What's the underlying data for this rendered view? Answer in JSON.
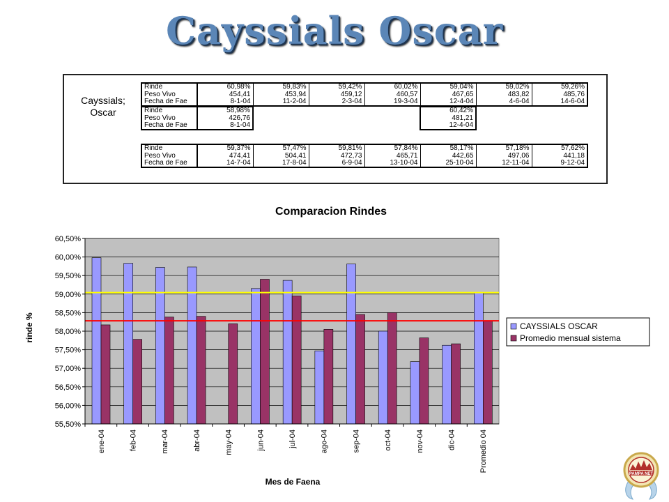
{
  "title": "Cayssials Oscar",
  "table": {
    "grower_label_line1": "Cayssials;",
    "grower_label_line2": "Oscar",
    "block1": {
      "labels": [
        "Rinde",
        "Peso Vivo",
        "Fecha de Fae"
      ],
      "rows": [
        [
          "60,98%",
          "59,83%",
          "59,42%",
          "60,02%",
          "59,04%",
          "59,02%",
          "59,26%"
        ],
        [
          "454,41",
          "453,94",
          "459,12",
          "460,57",
          "467,65",
          "483,82",
          "485,76"
        ],
        [
          "8-1-04",
          "11-2-04",
          "2-3-04",
          "19-3-04",
          "12-4-04",
          "4-6-04",
          "14-6-04"
        ]
      ]
    },
    "block2": {
      "labels": [
        "Rinde",
        "Peso Vivo",
        "Fecha de Fae"
      ],
      "rows": [
        [
          "58,98%",
          "",
          "",
          "",
          "60,42%",
          "",
          ""
        ],
        [
          "426,76",
          "",
          "",
          "",
          "481,21",
          "",
          ""
        ],
        [
          "8-1-04",
          "",
          "",
          "",
          "12-4-04",
          "",
          ""
        ]
      ]
    },
    "block3": {
      "labels": [
        "Rinde",
        "Peso Vivo",
        "Fecha de Fae"
      ],
      "rows": [
        [
          "59,37%",
          "57,47%",
          "59,81%",
          "57,84%",
          "58,17%",
          "57,18%",
          "57,62%"
        ],
        [
          "474,41",
          "504,41",
          "472,73",
          "465,71",
          "442,65",
          "497,06",
          "441,18"
        ],
        [
          "14-7-04",
          "17-8-04",
          "6-9-04",
          "13-10-04",
          "25-10-04",
          "12-11-04",
          "9-12-04"
        ]
      ]
    }
  },
  "chart_data": {
    "type": "bar",
    "title": "Comparacion Rindes",
    "xlabel": "Mes de Faena",
    "ylabel": "rinde %",
    "categories": [
      "ene-04",
      "feb-04",
      "mar-04",
      "abr-04",
      "may-04",
      "jun-04",
      "jul-04",
      "ago-04",
      "sep-04",
      "oct-04",
      "nov-04",
      "dic-04",
      "Promedio 04"
    ],
    "series": [
      {
        "name": "CAYSSIALS OSCAR",
        "color": "#9999ff",
        "values": [
          59.98,
          59.83,
          59.72,
          59.73,
          null,
          59.15,
          59.37,
          57.47,
          59.81,
          58.0,
          57.18,
          57.62,
          59.04
        ]
      },
      {
        "name": "Promedio mensual sistema",
        "color": "#993366",
        "values": [
          58.17,
          57.78,
          58.38,
          58.4,
          58.2,
          59.4,
          58.95,
          58.05,
          58.45,
          58.5,
          57.82,
          57.66,
          58.28
        ]
      }
    ],
    "reference_lines": [
      {
        "value": 59.04,
        "color": "#ffff00"
      },
      {
        "value": 58.28,
        "color": "#ff0000"
      }
    ],
    "ylim": [
      55.5,
      60.5
    ],
    "yticks": [
      "55,50%",
      "56,00%",
      "56,50%",
      "57,00%",
      "57,50%",
      "58,00%",
      "58,50%",
      "59,00%",
      "59,50%",
      "60,00%",
      "60,50%"
    ],
    "plot_background": "#c0c0c0",
    "grid": true,
    "legend_position": "right"
  },
  "logo": {
    "text": "PAMPA NET"
  }
}
